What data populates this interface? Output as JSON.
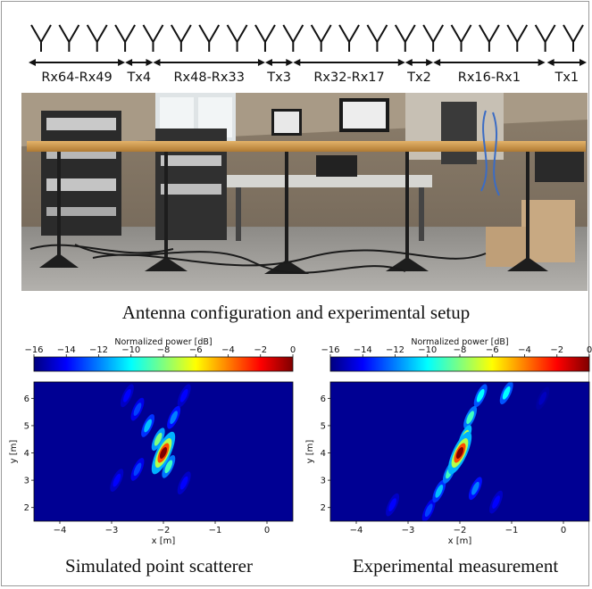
{
  "antenna_array": {
    "count": 20,
    "groups": [
      {
        "label": "Rx64-Rx49"
      },
      {
        "label": "Tx4"
      },
      {
        "label": "Rx48-Rx33"
      },
      {
        "label": "Tx3"
      },
      {
        "label": "Rx32-Rx17"
      },
      {
        "label": "Tx2"
      },
      {
        "label": "Rx16-Rx1"
      },
      {
        "label": "Tx1"
      }
    ]
  },
  "setup_caption": "Antenna configuration and experimental setup",
  "colorbar": {
    "label": "Normalized power [dB]",
    "ticks": [
      "−16",
      "−14",
      "−12",
      "−10",
      "−8",
      "−6",
      "−4",
      "−2",
      "0"
    ],
    "range": [
      -16,
      0
    ],
    "colors": [
      "#00007f",
      "#0000ff",
      "#007fff",
      "#00ffff",
      "#7fff7f",
      "#ffff00",
      "#ff7f00",
      "#ff0000",
      "#7f0000"
    ]
  },
  "chart_data": [
    {
      "type": "heatmap",
      "title": "",
      "xlabel": "x [m]",
      "ylabel": "y [m]",
      "xlim": [
        -4.5,
        0.5
      ],
      "ylim": [
        1.5,
        6.6
      ],
      "x_ticks": [
        "−4",
        "−3",
        "−2",
        "−1",
        "0"
      ],
      "y_ticks": [
        "2",
        "3",
        "4",
        "5",
        "6"
      ],
      "caption": "Simulated point scatterer",
      "peak": {
        "x": -2.0,
        "y": 4.0,
        "value_db": 0
      },
      "hotspots": [
        {
          "x": -2.0,
          "y": 4.0,
          "db": 0
        },
        {
          "x": -2.1,
          "y": 4.5,
          "db": -8
        },
        {
          "x": -1.9,
          "y": 3.5,
          "db": -9
        },
        {
          "x": -2.3,
          "y": 5.0,
          "db": -11
        },
        {
          "x": -1.8,
          "y": 5.3,
          "db": -12
        },
        {
          "x": -2.5,
          "y": 5.6,
          "db": -13
        },
        {
          "x": -2.7,
          "y": 6.1,
          "db": -14
        },
        {
          "x": -1.6,
          "y": 6.1,
          "db": -14
        },
        {
          "x": -2.5,
          "y": 3.4,
          "db": -13
        },
        {
          "x": -1.6,
          "y": 2.9,
          "db": -14
        },
        {
          "x": -2.9,
          "y": 3.0,
          "db": -14
        }
      ]
    },
    {
      "type": "heatmap",
      "title": "",
      "xlabel": "x [m]",
      "ylabel": "y [m]",
      "xlim": [
        -4.5,
        0.5
      ],
      "ylim": [
        1.5,
        6.6
      ],
      "x_ticks": [
        "−4",
        "−3",
        "−2",
        "−1",
        "0"
      ],
      "y_ticks": [
        "2",
        "3",
        "4",
        "5",
        "6"
      ],
      "caption": "Experimental measurement",
      "peak": {
        "x": -2.0,
        "y": 4.0,
        "value_db": 0
      },
      "hotspots": [
        {
          "x": -2.0,
          "y": 4.0,
          "db": 0
        },
        {
          "x": -1.9,
          "y": 4.6,
          "db": -7
        },
        {
          "x": -1.8,
          "y": 5.3,
          "db": -9
        },
        {
          "x": -1.6,
          "y": 6.1,
          "db": -10
        },
        {
          "x": -1.1,
          "y": 6.2,
          "db": -10
        },
        {
          "x": -2.2,
          "y": 3.3,
          "db": -9
        },
        {
          "x": -2.4,
          "y": 2.6,
          "db": -11
        },
        {
          "x": -1.7,
          "y": 2.7,
          "db": -12
        },
        {
          "x": -2.6,
          "y": 1.9,
          "db": -13
        },
        {
          "x": -3.3,
          "y": 2.1,
          "db": -14
        },
        {
          "x": -1.3,
          "y": 2.2,
          "db": -14
        },
        {
          "x": -0.4,
          "y": 6.0,
          "db": -15
        }
      ]
    }
  ]
}
